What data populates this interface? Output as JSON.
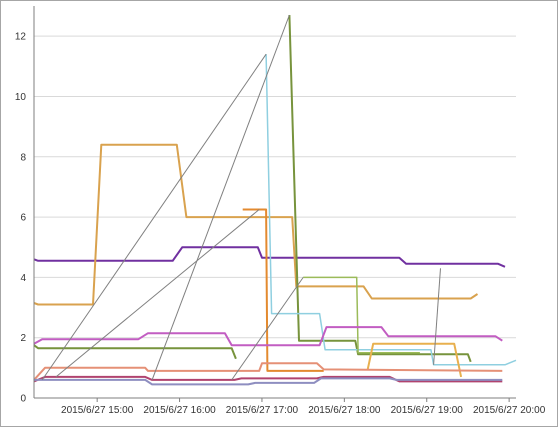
{
  "chart_data": {
    "type": "line",
    "title": "",
    "xlabel": "",
    "ylabel": "",
    "ylim": [
      0,
      13
    ],
    "xlim": [
      "2015-06-27 14:14",
      "2015-06-27 20:05"
    ],
    "grid": "horizontal",
    "y_ticks": [
      "0",
      "2",
      "4",
      "6",
      "8",
      "10",
      "12"
    ],
    "x_ticks": [
      {
        "t": "2015-06-27 15:00",
        "label": "2015/6/27 15:00"
      },
      {
        "t": "2015-06-27 16:00",
        "label": "2015/6/27 16:00"
      },
      {
        "t": "2015-06-27 17:00",
        "label": "2015/6/27 17:00"
      },
      {
        "t": "2015-06-27 18:00",
        "label": "2015/6/27 18:00"
      },
      {
        "t": "2015-06-27 19:00",
        "label": "2015/6/27 19:00"
      },
      {
        "t": "2015-06-27 20:00",
        "label": "2015/6/27 20:00"
      }
    ],
    "series": [
      {
        "color": "#7030a0",
        "width": 2,
        "points": [
          [
            "2015-06-27 14:14",
            4.6
          ],
          [
            "2015-06-27 14:17",
            4.55
          ],
          [
            "2015-06-27 15:55",
            4.55
          ],
          [
            "2015-06-27 16:02",
            5.0
          ],
          [
            "2015-06-27 16:57",
            5.0
          ],
          [
            "2015-06-27 17:00",
            4.65
          ],
          [
            "2015-06-27 18:40",
            4.65
          ],
          [
            "2015-06-27 18:45",
            4.45
          ],
          [
            "2015-06-27 19:52",
            4.45
          ],
          [
            "2015-06-27 19:57",
            4.35
          ]
        ]
      },
      {
        "color": "#d9a24e",
        "width": 2,
        "points": [
          [
            "2015-06-27 14:14",
            3.15
          ],
          [
            "2015-06-27 14:17",
            3.1
          ],
          [
            "2015-06-27 14:57",
            3.1
          ],
          [
            "2015-06-27 15:03",
            8.4
          ],
          [
            "2015-06-27 15:58",
            8.4
          ],
          [
            "2015-06-27 16:05",
            6.0
          ],
          [
            "2015-06-27 16:46",
            6.0
          ],
          [
            "2015-06-27 17:22",
            6.0
          ],
          [
            "2015-06-27 17:25",
            3.7
          ],
          [
            "2015-06-27 18:14",
            3.7
          ],
          [
            "2015-06-27 18:20",
            3.3
          ],
          [
            "2015-06-27 19:32",
            3.3
          ],
          [
            "2015-06-27 19:37",
            3.45
          ]
        ]
      },
      {
        "color": "#e38a2f",
        "width": 2,
        "points": [
          [
            "2015-06-27 16:46",
            6.25
          ],
          [
            "2015-06-27 17:03",
            6.25
          ],
          [
            "2015-06-27 17:04",
            0.9
          ],
          [
            "2015-06-27 17:45",
            0.9
          ]
        ]
      },
      {
        "color": "#77933c",
        "width": 2,
        "points": [
          [
            "2015-06-27 17:20",
            12.7
          ],
          [
            "2015-06-27 17:27",
            1.9
          ],
          [
            "2015-06-27 18:08",
            1.9
          ],
          [
            "2015-06-27 18:10",
            1.45
          ],
          [
            "2015-06-27 19:30",
            1.45
          ],
          [
            "2015-06-27 19:32",
            1.2
          ]
        ]
      },
      {
        "color": "#8fcfe0",
        "width": 1.5,
        "points": [
          [
            "2015-06-27 17:03",
            11.4
          ],
          [
            "2015-06-27 17:07",
            2.8
          ],
          [
            "2015-06-27 17:42",
            2.8
          ],
          [
            "2015-06-27 17:46",
            1.6
          ],
          [
            "2015-06-27 19:03",
            1.6
          ],
          [
            "2015-06-27 19:05",
            1.1
          ],
          [
            "2015-06-27 19:57",
            1.1
          ],
          [
            "2015-06-27 20:05",
            1.25
          ]
        ]
      },
      {
        "color": "#9bbb59",
        "width": 1.5,
        "points": [
          [
            "2015-06-27 17:30",
            4.0
          ],
          [
            "2015-06-27 18:09",
            4.0
          ],
          [
            "2015-06-27 18:10",
            1.5
          ],
          [
            "2015-06-27 18:55",
            1.5
          ]
        ]
      },
      {
        "color": "#e8b04e",
        "width": 2,
        "points": [
          [
            "2015-06-27 18:17",
            0.95
          ],
          [
            "2015-06-27 18:21",
            1.8
          ],
          [
            "2015-06-27 19:20",
            1.8
          ],
          [
            "2015-06-27 19:25",
            0.7
          ]
        ]
      },
      {
        "color": "#c25dc2",
        "width": 2,
        "points": [
          [
            "2015-06-27 14:14",
            1.8
          ],
          [
            "2015-06-27 14:20",
            1.95
          ],
          [
            "2015-06-27 15:30",
            1.95
          ],
          [
            "2015-06-27 15:37",
            2.15
          ],
          [
            "2015-06-27 16:33",
            2.15
          ],
          [
            "2015-06-27 16:38",
            1.75
          ],
          [
            "2015-06-27 17:42",
            1.75
          ],
          [
            "2015-06-27 17:47",
            2.35
          ],
          [
            "2015-06-27 18:27",
            2.35
          ],
          [
            "2015-06-27 18:32",
            2.05
          ],
          [
            "2015-06-27 19:50",
            2.05
          ],
          [
            "2015-06-27 19:55",
            1.9
          ]
        ]
      },
      {
        "color": "#77933c",
        "width": 2,
        "points": [
          [
            "2015-06-27 14:14",
            1.75
          ],
          [
            "2015-06-27 14:17",
            1.65
          ],
          [
            "2015-06-27 16:38",
            1.65
          ],
          [
            "2015-06-27 16:41",
            1.3
          ]
        ]
      },
      {
        "color": "#e59076",
        "width": 2,
        "points": [
          [
            "2015-06-27 14:14",
            0.6
          ],
          [
            "2015-06-27 14:22",
            1.0
          ],
          [
            "2015-06-27 15:35",
            1.0
          ],
          [
            "2015-06-27 15:37",
            0.9
          ],
          [
            "2015-06-27 16:58",
            0.9
          ],
          [
            "2015-06-27 17:00",
            1.15
          ],
          [
            "2015-06-27 17:40",
            1.15
          ],
          [
            "2015-06-27 17:45",
            0.95
          ],
          [
            "2015-06-27 19:55",
            0.9
          ]
        ]
      },
      {
        "color": "#b0436f",
        "width": 2,
        "points": [
          [
            "2015-06-27 14:14",
            0.55
          ],
          [
            "2015-06-27 14:22",
            0.7
          ],
          [
            "2015-06-27 15:35",
            0.7
          ],
          [
            "2015-06-27 15:40",
            0.6
          ],
          [
            "2015-06-27 16:40",
            0.6
          ],
          [
            "2015-06-27 16:45",
            0.65
          ],
          [
            "2015-06-27 17:40",
            0.65
          ],
          [
            "2015-06-27 17:45",
            0.7
          ],
          [
            "2015-06-27 18:33",
            0.7
          ],
          [
            "2015-06-27 18:40",
            0.55
          ],
          [
            "2015-06-27 19:55",
            0.55
          ]
        ]
      },
      {
        "color": "#8e8ec0",
        "width": 2,
        "points": [
          [
            "2015-06-27 14:14",
            0.6
          ],
          [
            "2015-06-27 15:35",
            0.6
          ],
          [
            "2015-06-27 15:40",
            0.45
          ],
          [
            "2015-06-27 16:50",
            0.45
          ],
          [
            "2015-06-27 16:55",
            0.5
          ],
          [
            "2015-06-27 17:38",
            0.5
          ],
          [
            "2015-06-27 17:43",
            0.65
          ],
          [
            "2015-06-27 18:33",
            0.65
          ],
          [
            "2015-06-27 18:38",
            0.6
          ],
          [
            "2015-06-27 19:55",
            0.6
          ]
        ]
      },
      {
        "color": "#808080",
        "width": 1,
        "points": [
          [
            "2015-06-27 14:20",
            0.6
          ],
          [
            "2015-06-27 17:03",
            11.4
          ]
        ]
      },
      {
        "color": "#808080",
        "width": 1,
        "points": [
          [
            "2015-06-27 15:40",
            0.6
          ],
          [
            "2015-06-27 17:20",
            12.7
          ]
        ]
      },
      {
        "color": "#808080",
        "width": 1,
        "points": [
          [
            "2015-06-27 14:30",
            0.7
          ],
          [
            "2015-06-27 16:58",
            6.25
          ]
        ]
      },
      {
        "color": "#808080",
        "width": 1,
        "points": [
          [
            "2015-06-27 16:38",
            0.6
          ],
          [
            "2015-06-27 17:30",
            4.0
          ]
        ]
      },
      {
        "color": "#808080",
        "width": 1,
        "points": [
          [
            "2015-06-27 19:05",
            1.1
          ],
          [
            "2015-06-27 19:10",
            4.3
          ]
        ]
      }
    ]
  }
}
